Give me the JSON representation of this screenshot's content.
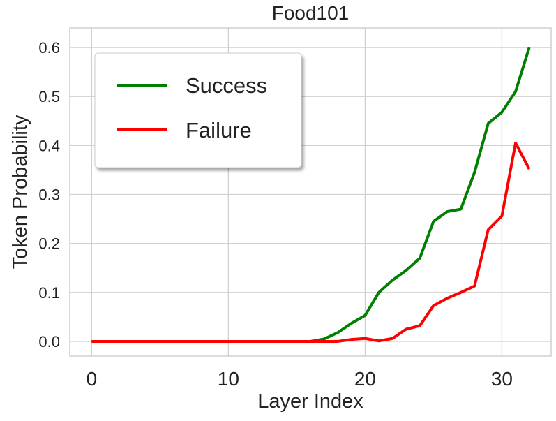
{
  "chart_data": {
    "type": "line",
    "title": "Food101",
    "xlabel": "Layer Index",
    "ylabel": "Token Probability",
    "x": [
      0,
      1,
      2,
      3,
      4,
      5,
      6,
      7,
      8,
      9,
      10,
      11,
      12,
      13,
      14,
      15,
      16,
      17,
      18,
      19,
      20,
      21,
      22,
      23,
      24,
      25,
      26,
      27,
      28,
      29,
      30,
      31,
      32
    ],
    "series": [
      {
        "name": "Success",
        "color": "#008000",
        "values": [
          0,
          0,
          0,
          0,
          0,
          0,
          0,
          0,
          0,
          0,
          0,
          0,
          0,
          0,
          0,
          0,
          0,
          0.005,
          0.018,
          0.037,
          0.053,
          0.1,
          0.125,
          0.145,
          0.17,
          0.245,
          0.265,
          0.27,
          0.345,
          0.445,
          0.468,
          0.51,
          0.6
        ]
      },
      {
        "name": "Failure",
        "color": "#ff0000",
        "values": [
          0,
          0,
          0,
          0,
          0,
          0,
          0,
          0,
          0,
          0,
          0,
          0,
          0,
          0,
          0,
          0,
          0,
          0,
          0,
          0.004,
          0.006,
          0.001,
          0.006,
          0.025,
          0.032,
          0.073,
          0.088,
          0.1,
          0.113,
          0.228,
          0.256,
          0.405,
          0.352
        ]
      }
    ],
    "xlim": [
      -1.6,
      33.6
    ],
    "ylim": [
      -0.03,
      0.64
    ],
    "xticks": [
      0,
      10,
      20,
      30
    ],
    "yticks": [
      {
        "value": 0,
        "label": "0.0"
      },
      0.1,
      0.2,
      0.3,
      0.4,
      0.5,
      0.6
    ],
    "grid": true,
    "legend": "upper left"
  }
}
